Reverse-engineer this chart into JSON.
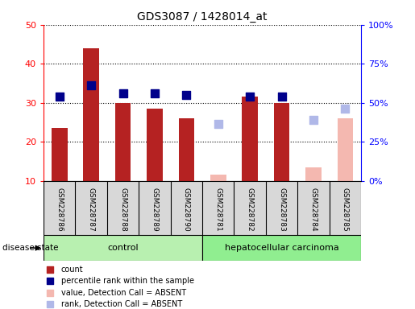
{
  "title": "GDS3087 / 1428014_at",
  "samples": [
    "GSM228786",
    "GSM228787",
    "GSM228788",
    "GSM228789",
    "GSM228790",
    "GSM228781",
    "GSM228782",
    "GSM228783",
    "GSM228784",
    "GSM228785"
  ],
  "control_count": 5,
  "count_present": [
    23.5,
    44.0,
    30.0,
    28.5,
    26.0,
    null,
    31.5,
    30.0,
    null,
    null
  ],
  "count_absent_value": [
    null,
    null,
    null,
    null,
    null,
    11.5,
    null,
    null,
    13.5,
    26.0
  ],
  "rank_present": [
    31.5,
    34.5,
    32.5,
    32.5,
    32.0,
    null,
    31.5,
    31.5,
    null,
    null
  ],
  "rank_absent": [
    null,
    null,
    null,
    null,
    null,
    24.5,
    null,
    null,
    25.5,
    28.5
  ],
  "ylim_left": [
    10,
    50
  ],
  "ylim_right": [
    0,
    100
  ],
  "yticks_left": [
    10,
    20,
    30,
    40,
    50
  ],
  "yticks_right": [
    0,
    25,
    50,
    75,
    100
  ],
  "yticklabels_left": [
    "10",
    "20",
    "30",
    "40",
    "50"
  ],
  "yticklabels_right": [
    "0%",
    "25%",
    "50%",
    "75%",
    "100%"
  ],
  "bar_color_present": "#b52222",
  "bar_color_absent": "#f4b8b0",
  "dot_color_present": "#00008b",
  "dot_color_absent": "#b0b8e8",
  "control_color": "#b8f0b0",
  "hcc_color": "#90ee90",
  "legend_labels": [
    "count",
    "percentile rank within the sample",
    "value, Detection Call = ABSENT",
    "rank, Detection Call = ABSENT"
  ],
  "legend_colors": [
    "#b52222",
    "#00008b",
    "#f4b8b0",
    "#b0b8e8"
  ],
  "bar_width": 0.5,
  "dot_size": 45,
  "tick_label_fontsize": 8,
  "title_fontsize": 10
}
